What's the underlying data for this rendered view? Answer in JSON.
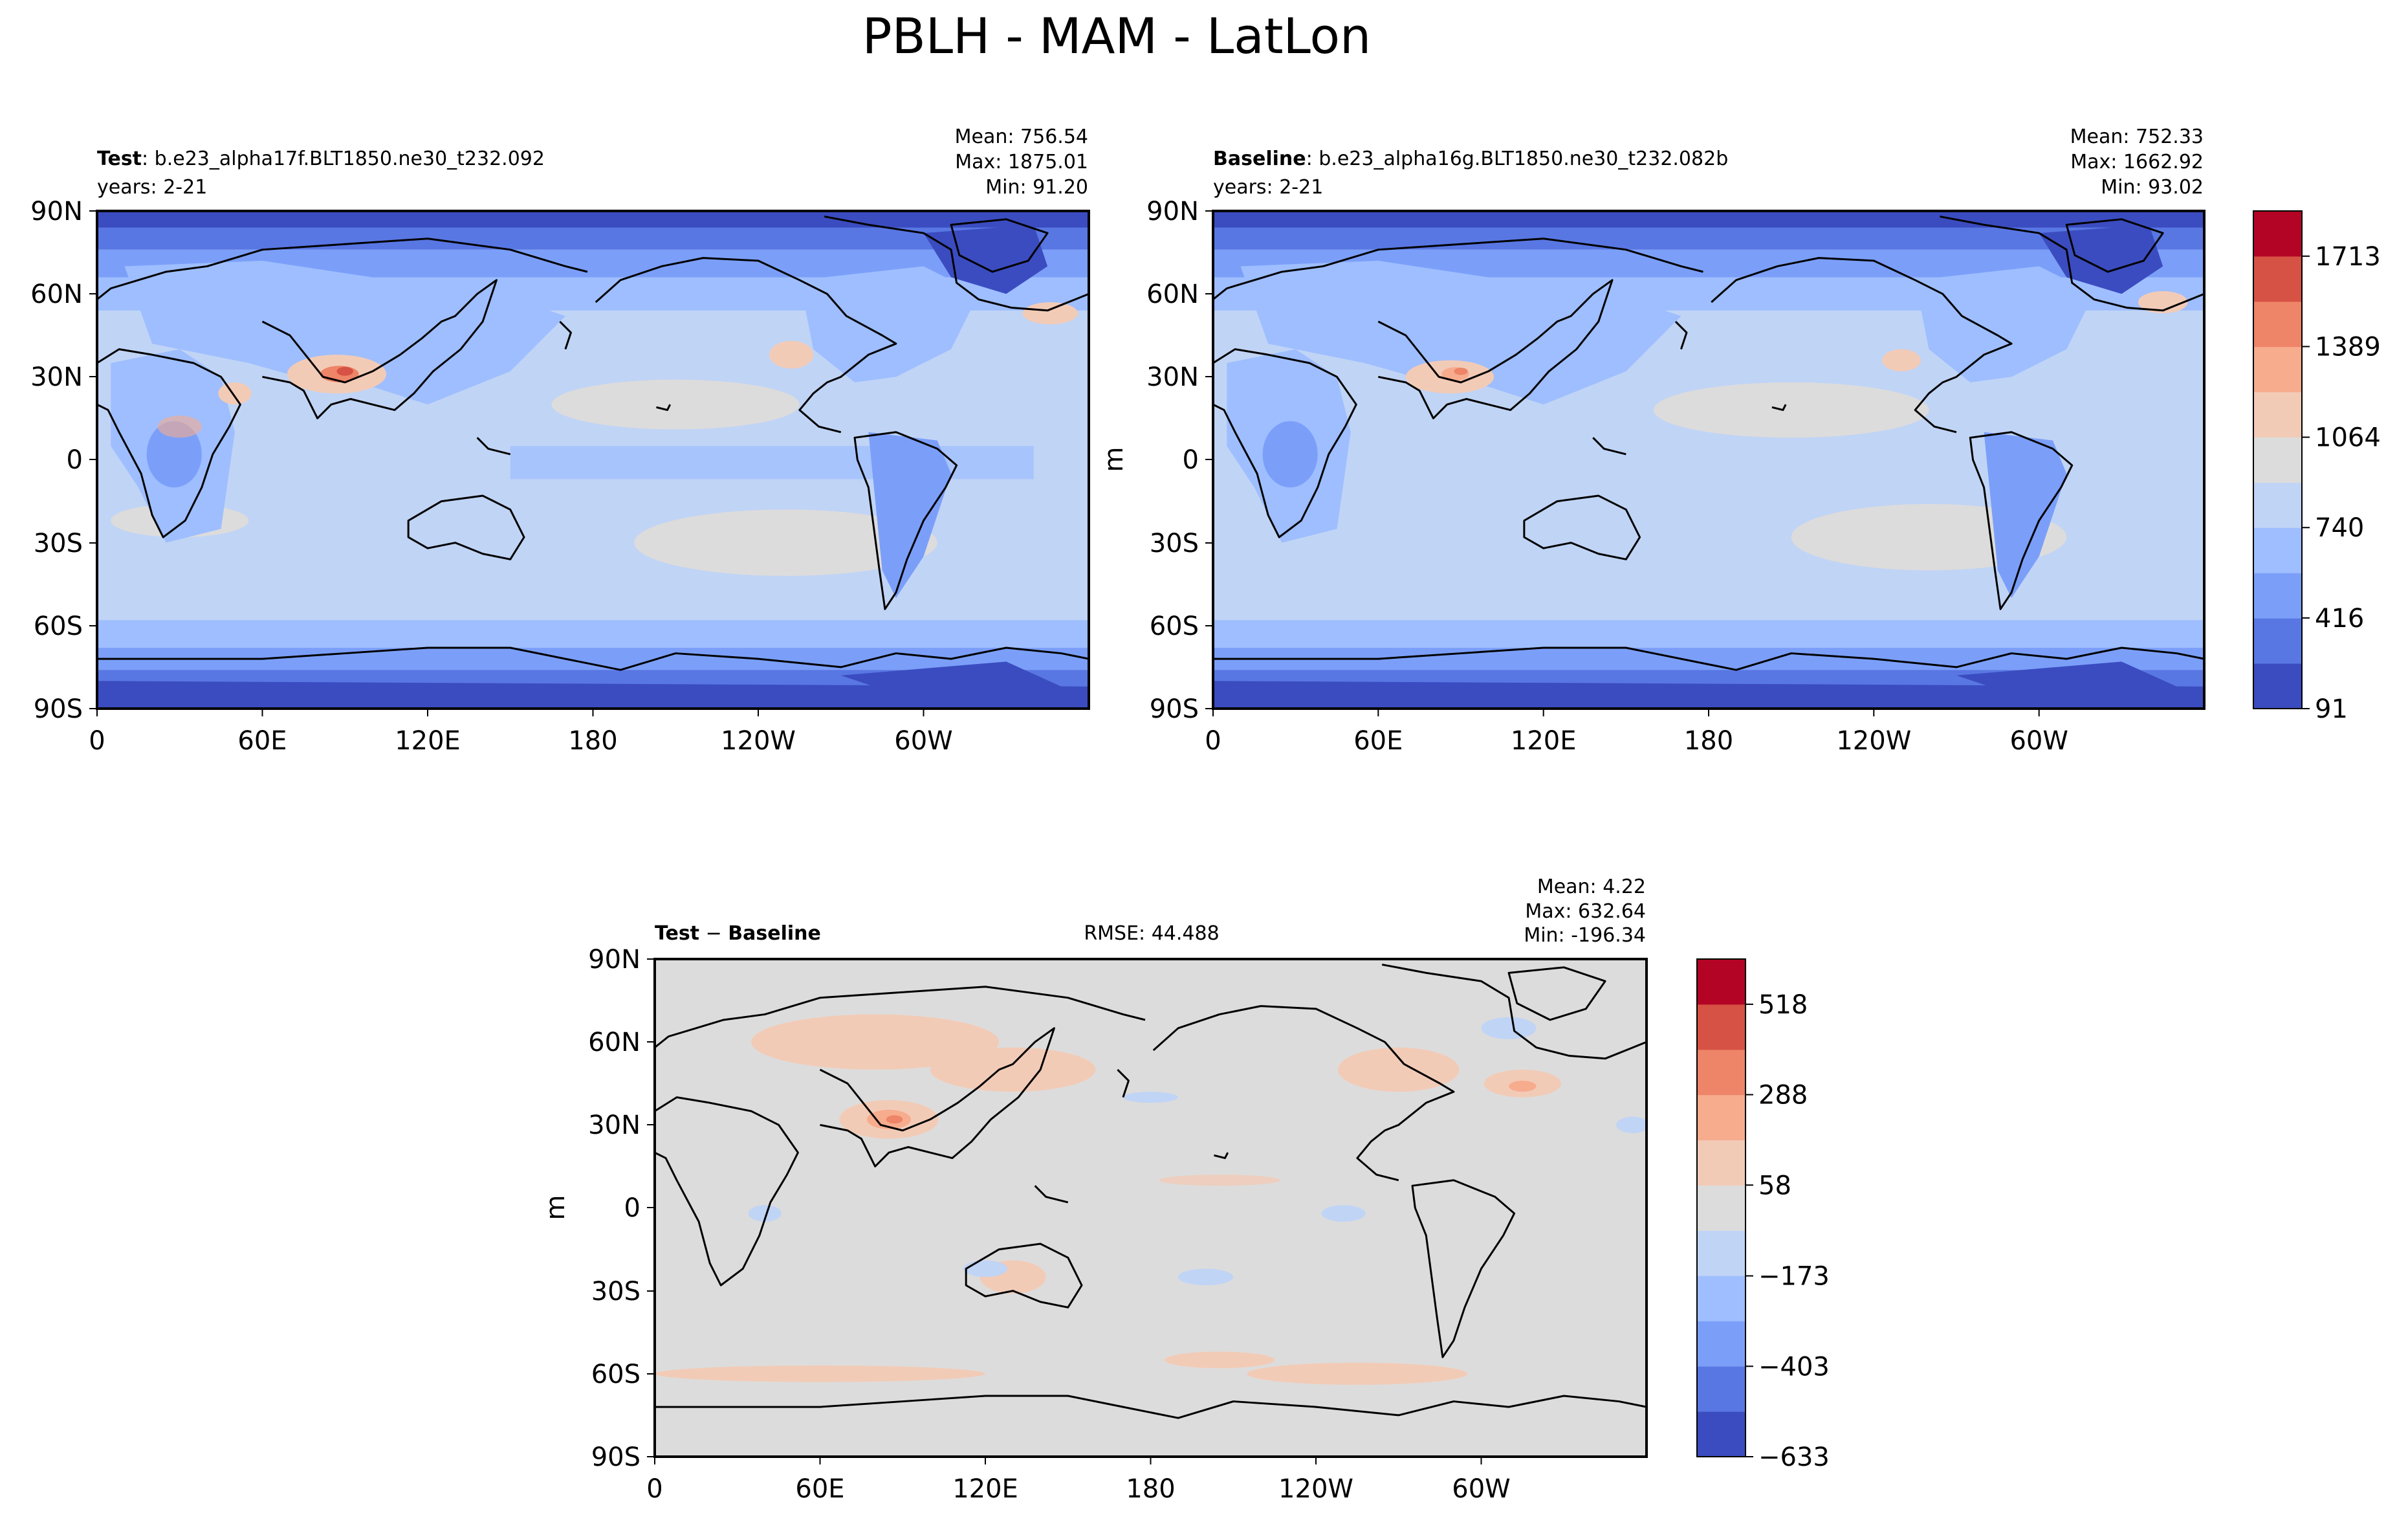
{
  "figure": {
    "title": "PBLH - MAM - LatLon"
  },
  "colors": {
    "levels_fill": [
      "#3b4cc0",
      "#5977e3",
      "#7b9ff9",
      "#9ebeff",
      "#c0d4f5",
      "#dddcdc",
      "#f2cbb7",
      "#f7ac8e",
      "#ee8468",
      "#d65244",
      "#b40426"
    ],
    "frame": "#000000"
  },
  "chart_data": [
    {
      "type": "heatmap",
      "panel": "test",
      "label_bold": "Test",
      "label_rest": ": b.e23_alpha17f.BLT1850.ne30_t232.092",
      "years": "years: 2-21",
      "stats": [
        "Mean: 756.54",
        "Max: 1875.01",
        "Min: 91.20"
      ],
      "x_ticks": [
        "0",
        "60E",
        "120E",
        "180",
        "120W",
        "60W"
      ],
      "y_ticks": [
        "90N",
        "60N",
        "30N",
        "0",
        "30S",
        "60S",
        "90S"
      ],
      "xlim": [
        0,
        360
      ],
      "ylim": [
        -90,
        90
      ],
      "levels": [
        91,
        253,
        416,
        578,
        740,
        902,
        1064,
        1227,
        1389,
        1551,
        1713,
        1875
      ]
    },
    {
      "type": "heatmap",
      "panel": "baseline",
      "label_bold": "Baseline",
      "label_rest": ": b.e23_alpha16g.BLT1850.ne30_t232.082b",
      "years": "years: 2-21",
      "stats": [
        "Mean: 752.33",
        "Max: 1662.92",
        "Min: 93.02"
      ],
      "x_ticks": [
        "0",
        "60E",
        "120E",
        "180",
        "120W",
        "60W"
      ],
      "y_ticks": [
        "90N",
        "60N",
        "30N",
        "0",
        "30S",
        "60S",
        "90S"
      ],
      "ylabel": "m",
      "xlim": [
        0,
        360
      ],
      "ylim": [
        -90,
        90
      ],
      "colorbar_ticks": [
        "91",
        "416",
        "740",
        "1064",
        "1389",
        "1713"
      ],
      "levels": [
        91,
        253,
        416,
        578,
        740,
        902,
        1064,
        1227,
        1389,
        1551,
        1713,
        1875
      ]
    },
    {
      "type": "heatmap",
      "panel": "difference",
      "label_bold_1": "Test",
      "label_mid": " − ",
      "label_bold_2": "Baseline",
      "rmse": "RMSE: 44.488",
      "stats": [
        "Mean:  4.22",
        "Max: 632.64",
        "Min: -196.34"
      ],
      "x_ticks": [
        "0",
        "60E",
        "120E",
        "180",
        "120W",
        "60W"
      ],
      "y_ticks": [
        "90N",
        "60N",
        "30N",
        "0",
        "30S",
        "60S",
        "90S"
      ],
      "ylabel": "m",
      "xlim": [
        0,
        360
      ],
      "ylim": [
        -90,
        90
      ],
      "colorbar_ticks": [
        "518",
        "288",
        "58",
        "−173",
        "−403",
        "−633"
      ],
      "levels": [
        -633,
        -518,
        -403,
        -288,
        -173,
        -58,
        58,
        173,
        288,
        403,
        518,
        633
      ]
    }
  ]
}
